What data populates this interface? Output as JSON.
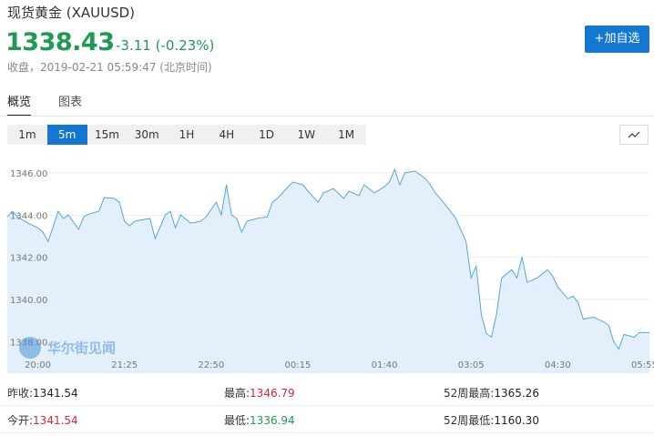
{
  "header": {
    "title": "现货黄金 (XAUUSD)",
    "price": "1338.43",
    "change": "-3.11 (-0.23%)",
    "close_info": "收盘，2019-02-21 05:59:47 (北京时间)",
    "button": "+加自选"
  },
  "tabs": [
    "概览",
    "图表"
  ],
  "intervals": [
    "1m",
    "5m",
    "15m",
    "30m",
    "1H",
    "4H",
    "1D",
    "1W",
    "1M"
  ],
  "active_interval": "5m",
  "chart_data": {
    "type": "area",
    "color": "#5aa5de",
    "fill": "#e3f0fb",
    "watermark": "华尔街见闻",
    "x": [
      -30,
      -25,
      -20,
      -10,
      0,
      5,
      10,
      20,
      25,
      30,
      40,
      45,
      50,
      60,
      65,
      75,
      80,
      85,
      90,
      95,
      110,
      115,
      125,
      130,
      135,
      140,
      150,
      160,
      165,
      175,
      180,
      185,
      190,
      195,
      200,
      205,
      215,
      225,
      230,
      235,
      240,
      250,
      260,
      265,
      275,
      280,
      290,
      300,
      305,
      315,
      320,
      330,
      340,
      345,
      350,
      355,
      360,
      370,
      380,
      385,
      390,
      400,
      410,
      420,
      425,
      430,
      435,
      440,
      445,
      450,
      455,
      465,
      470,
      475,
      480,
      490,
      500,
      505,
      510,
      520,
      525,
      530,
      535,
      545,
      555,
      560,
      565,
      570,
      575,
      585,
      590,
      600
    ],
    "values": [
      1343.92,
      1344.18,
      1343.92,
      1343.62,
      1343.4,
      1343.19,
      1342.75,
      1344.18,
      1343.84,
      1344.01,
      1343.32,
      1343.92,
      1344.05,
      1344.18,
      1344.83,
      1344.79,
      1344.61,
      1343.71,
      1343.49,
      1343.71,
      1343.84,
      1342.88,
      1344.01,
      1344.18,
      1343.4,
      1344.01,
      1343.62,
      1343.71,
      1343.92,
      1344.61,
      1344.01,
      1345.44,
      1344.01,
      1343.84,
      1343.19,
      1343.71,
      1343.84,
      1343.92,
      1344.61,
      1344.79,
      1345.05,
      1345.57,
      1345.44,
      1345.13,
      1344.61,
      1345.05,
      1345.26,
      1344.79,
      1345.13,
      1344.92,
      1345.44,
      1345.05,
      1345.35,
      1345.57,
      1346.17,
      1345.44,
      1346.0,
      1346.09,
      1345.74,
      1345.44,
      1345.05,
      1344.48,
      1343.84,
      1342.75,
      1341.02,
      1341.58,
      1339.29,
      1338.38,
      1338.21,
      1339.29,
      1341.02,
      1341.41,
      1341.02,
      1342.02,
      1340.81,
      1341.02,
      1341.41,
      1341.11,
      1340.59,
      1340.03,
      1340.16,
      1339.85,
      1339.07,
      1339.16,
      1338.94,
      1338.77,
      1337.99,
      1337.65,
      1338.34,
      1338.21,
      1338.42,
      1338.43
    ],
    "xlim": [
      -30,
      600
    ],
    "xticks": [
      {
        "value": 0,
        "label": "20:00"
      },
      {
        "value": 85,
        "label": "21:25"
      },
      {
        "value": 170,
        "label": "22:50"
      },
      {
        "value": 255,
        "label": "00:15"
      },
      {
        "value": 340,
        "label": "01:40"
      },
      {
        "value": 425,
        "label": "03:05"
      },
      {
        "value": 510,
        "label": "04:30"
      },
      {
        "value": 595,
        "label": "05:55"
      }
    ],
    "ylim": [
      1336.5,
      1346.95
    ],
    "yticks": [
      {
        "value": 1338,
        "label": "1338.00"
      },
      {
        "value": 1340,
        "label": "1340.00"
      },
      {
        "value": 1342,
        "label": "1342.00"
      },
      {
        "value": 1344,
        "label": "1344.00"
      },
      {
        "value": 1346,
        "label": "1346.00"
      }
    ],
    "grid": true
  },
  "stats": [
    [
      {
        "label": "昨收:",
        "value": "1341.54"
      },
      {
        "label": "最高:",
        "value": "1346.79"
      },
      {
        "label": "52周最高:",
        "value": "1365.26"
      }
    ],
    [
      {
        "label": "今开:",
        "value": "1341.54"
      },
      {
        "label": "最低:",
        "value": "1336.94"
      },
      {
        "label": "52周最低:",
        "value": "1160.30"
      }
    ]
  ]
}
